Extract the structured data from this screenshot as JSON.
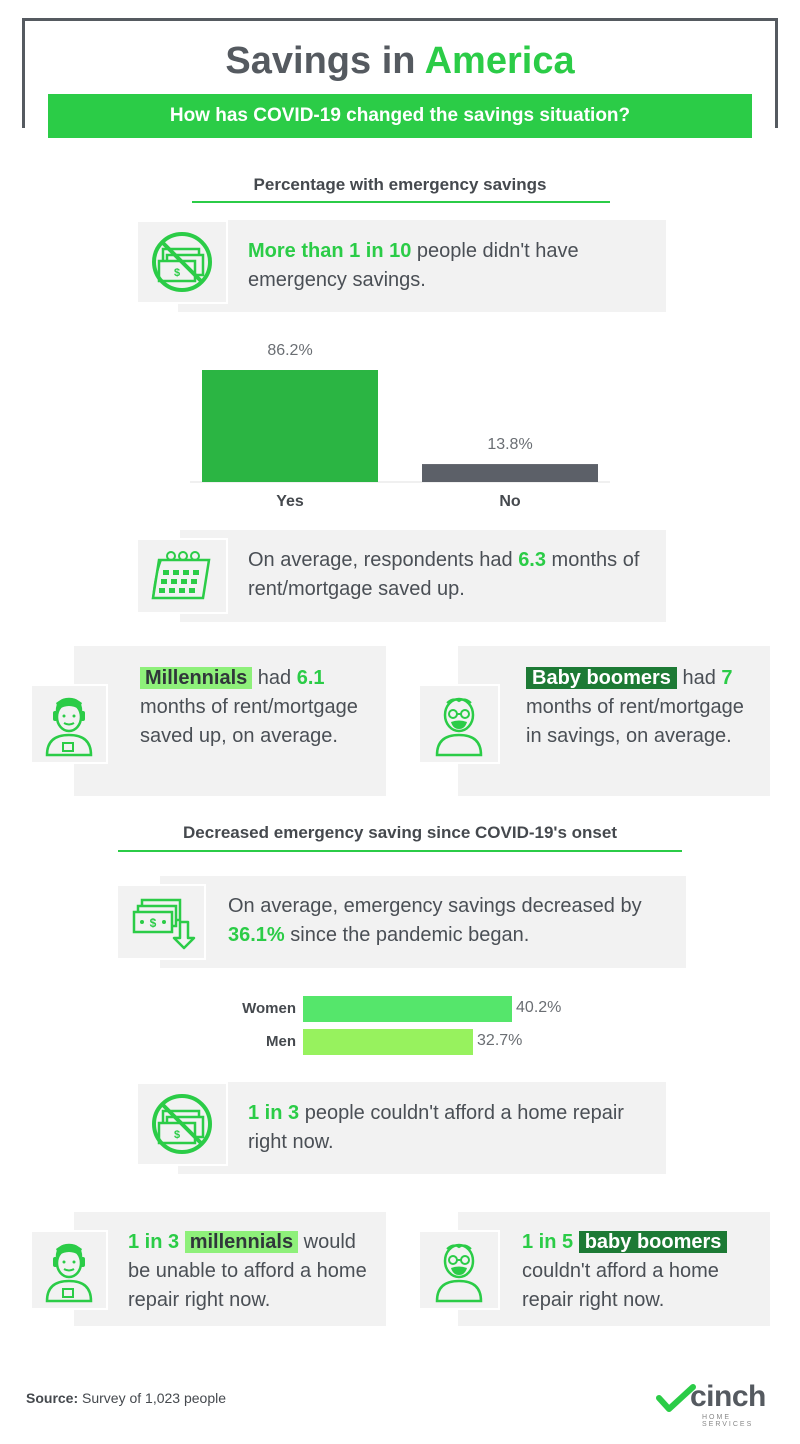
{
  "header": {
    "title_part1": "Savings in ",
    "title_part2": "America",
    "subtitle": "How has COVID-19 changed the savings situation?"
  },
  "section1": {
    "heading": "Percentage with emergency savings",
    "stat_card": {
      "highlight": "More than 1 in 10",
      "text": " people didn't have emergency savings."
    }
  },
  "chart_data": [
    {
      "type": "bar",
      "categories": [
        "Yes",
        "No"
      ],
      "values": [
        86.2,
        13.8
      ],
      "value_labels": [
        "86.2%",
        "13.8%"
      ],
      "colors": [
        "#2bb543",
        "#5c6068"
      ]
    },
    {
      "type": "bar",
      "orientation": "horizontal",
      "categories": [
        "Women",
        "Men"
      ],
      "values": [
        40.2,
        32.7
      ],
      "value_labels": [
        "40.2%",
        "32.7%"
      ],
      "colors": [
        "#55e66b",
        "#97f25e"
      ]
    }
  ],
  "rent_card": {
    "text1": "On average, respondents had ",
    "highlight": "6.3",
    "text2": " months of rent/mortgage saved up."
  },
  "millennials_card": {
    "tag": "Millennials",
    "text1": " had ",
    "value": "6.1",
    "text2": " months of rent/mortgage saved up, on average."
  },
  "boomers_card": {
    "tag": "Baby boomers",
    "text1": " had ",
    "value": "7",
    "text2": " months of rent/mortgage in savings, on average."
  },
  "section2": {
    "heading": "Decreased emergency saving since COVID-19's onset",
    "decrease_card": {
      "text1": "On average, emergency savings decreased by ",
      "highlight": "36.1%",
      "text2": " since the pandemic began."
    }
  },
  "repair_card": {
    "highlight": "1 in 3",
    "text": " people couldn't afford a home repair right now."
  },
  "millennials_repair": {
    "ratio": "1 in 3",
    "tag": "millennials",
    "text1": " would be unable to afford a home repair right now."
  },
  "boomers_repair": {
    "ratio": "1 in 5",
    "tag": "baby boomers",
    "text1": " couldn't afford a home repair right now."
  },
  "footer": {
    "source_label": "Source:",
    "source_text": " Survey of 1,023 people",
    "logo": "cinch",
    "logo_sub": "HOME SERVICES"
  },
  "icons": [
    "no-money-icon",
    "calendar-icon",
    "millennial-person-icon",
    "boomer-person-icon",
    "money-down-icon",
    "cinch-logo-icon"
  ]
}
